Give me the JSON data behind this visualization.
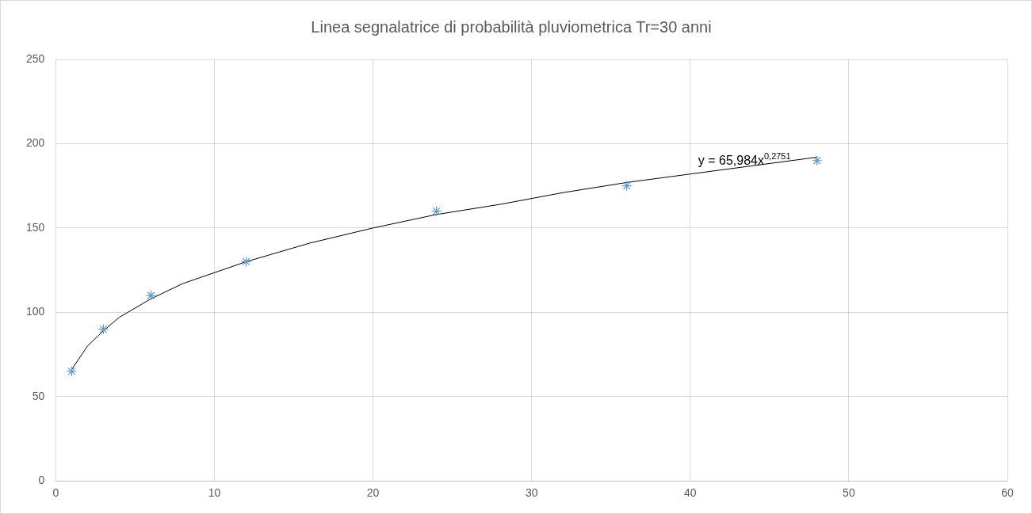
{
  "chart_data": {
    "type": "scatter",
    "title": "Linea segnalatrice di probabilità pluviometrica Tr=30 anni",
    "series": [
      {
        "color": "#5b9bd5",
        "x": [
          1,
          3,
          6,
          12,
          24,
          36,
          48
        ],
        "values": [
          65,
          90,
          110,
          130,
          160,
          175,
          190
        ]
      },
      {
        "type": "line",
        "color": "#000000",
        "marker": "none",
        "x": [
          1,
          2,
          3,
          4,
          6,
          8,
          12,
          16,
          20,
          24,
          28,
          32,
          36,
          40,
          44,
          48
        ],
        "values": [
          66,
          80,
          89,
          97,
          108,
          117,
          130,
          141,
          150,
          158,
          164,
          171,
          177,
          182,
          187,
          192
        ]
      }
    ],
    "marker": "cross",
    "xlim": [
      0,
      60
    ],
    "xticks": [
      0,
      10,
      20,
      30,
      40,
      50,
      60
    ],
    "ylim": [
      0,
      250
    ],
    "yticks": [
      0,
      50,
      100,
      150,
      200,
      250
    ],
    "grid": true,
    "legend": false,
    "annotations": [
      "y = 65,984x$^{0,2751}$"
    ]
  }
}
